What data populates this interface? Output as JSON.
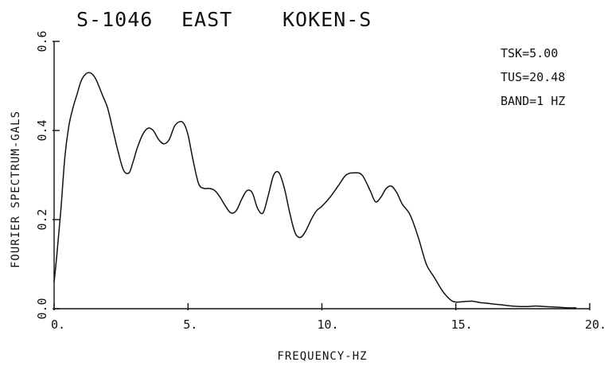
{
  "chart_data": {
    "type": "line",
    "title_parts": [
      "S-1046",
      "EAST",
      "KOKEN-S"
    ],
    "annotations": [
      "TSK=5.00",
      "TUS=20.48",
      "BAND=1 HZ"
    ],
    "xlabel": "FREQUENCY-HZ",
    "ylabel": "FOURIER SPECTRUM-GALS",
    "xlim": [
      0,
      20
    ],
    "ylim": [
      0,
      0.6
    ],
    "x_ticks": [
      {
        "value": 0,
        "label": "0."
      },
      {
        "value": 5,
        "label": "5."
      },
      {
        "value": 10,
        "label": "10."
      },
      {
        "value": 15,
        "label": "15."
      },
      {
        "value": 20,
        "label": "20."
      }
    ],
    "y_ticks": [
      {
        "value": 0,
        "label": "0.0"
      },
      {
        "value": 0.2,
        "label": "0.2"
      },
      {
        "value": 0.4,
        "label": "0.4"
      },
      {
        "value": 0.6,
        "label": "0.6"
      }
    ],
    "grid": false,
    "series": [
      {
        "x": [
          0,
          0.1,
          0.25,
          0.4,
          0.55,
          0.7,
          0.85,
          1.0,
          1.15,
          1.3,
          1.45,
          1.6,
          1.8,
          2.0,
          2.2,
          2.4,
          2.6,
          2.8,
          2.95,
          3.1,
          3.3,
          3.5,
          3.7,
          3.9,
          4.1,
          4.3,
          4.5,
          4.7,
          4.85,
          5.0,
          5.2,
          5.4,
          5.6,
          5.8,
          6.0,
          6.2,
          6.4,
          6.6,
          6.8,
          7.0,
          7.2,
          7.4,
          7.6,
          7.8,
          8.0,
          8.2,
          8.4,
          8.6,
          8.8,
          9.0,
          9.2,
          9.4,
          9.6,
          9.8,
          10.0,
          10.3,
          10.6,
          10.9,
          11.2,
          11.5,
          11.8,
          12.0,
          12.2,
          12.4,
          12.6,
          12.8,
          13.0,
          13.3,
          13.6,
          13.9,
          14.2,
          14.5,
          14.8,
          15.0,
          15.3,
          15.6,
          15.9,
          16.2,
          16.5,
          16.8,
          17.1,
          17.4,
          17.7,
          18.0,
          18.3,
          18.6,
          18.9,
          19.2,
          19.5
        ],
        "y": [
          0.06,
          0.12,
          0.22,
          0.34,
          0.41,
          0.45,
          0.48,
          0.51,
          0.525,
          0.53,
          0.525,
          0.51,
          0.48,
          0.45,
          0.4,
          0.35,
          0.31,
          0.305,
          0.33,
          0.36,
          0.39,
          0.405,
          0.4,
          0.38,
          0.37,
          0.38,
          0.41,
          0.42,
          0.415,
          0.39,
          0.33,
          0.28,
          0.27,
          0.27,
          0.265,
          0.25,
          0.23,
          0.215,
          0.22,
          0.245,
          0.265,
          0.26,
          0.225,
          0.215,
          0.255,
          0.3,
          0.305,
          0.27,
          0.215,
          0.17,
          0.16,
          0.175,
          0.2,
          0.22,
          0.23,
          0.25,
          0.275,
          0.3,
          0.305,
          0.3,
          0.265,
          0.24,
          0.25,
          0.27,
          0.275,
          0.26,
          0.235,
          0.21,
          0.16,
          0.1,
          0.07,
          0.04,
          0.02,
          0.015,
          0.016,
          0.017,
          0.014,
          0.012,
          0.01,
          0.008,
          0.006,
          0.005,
          0.005,
          0.006,
          0.005,
          0.004,
          0.003,
          0.002,
          0.002
        ]
      }
    ]
  }
}
